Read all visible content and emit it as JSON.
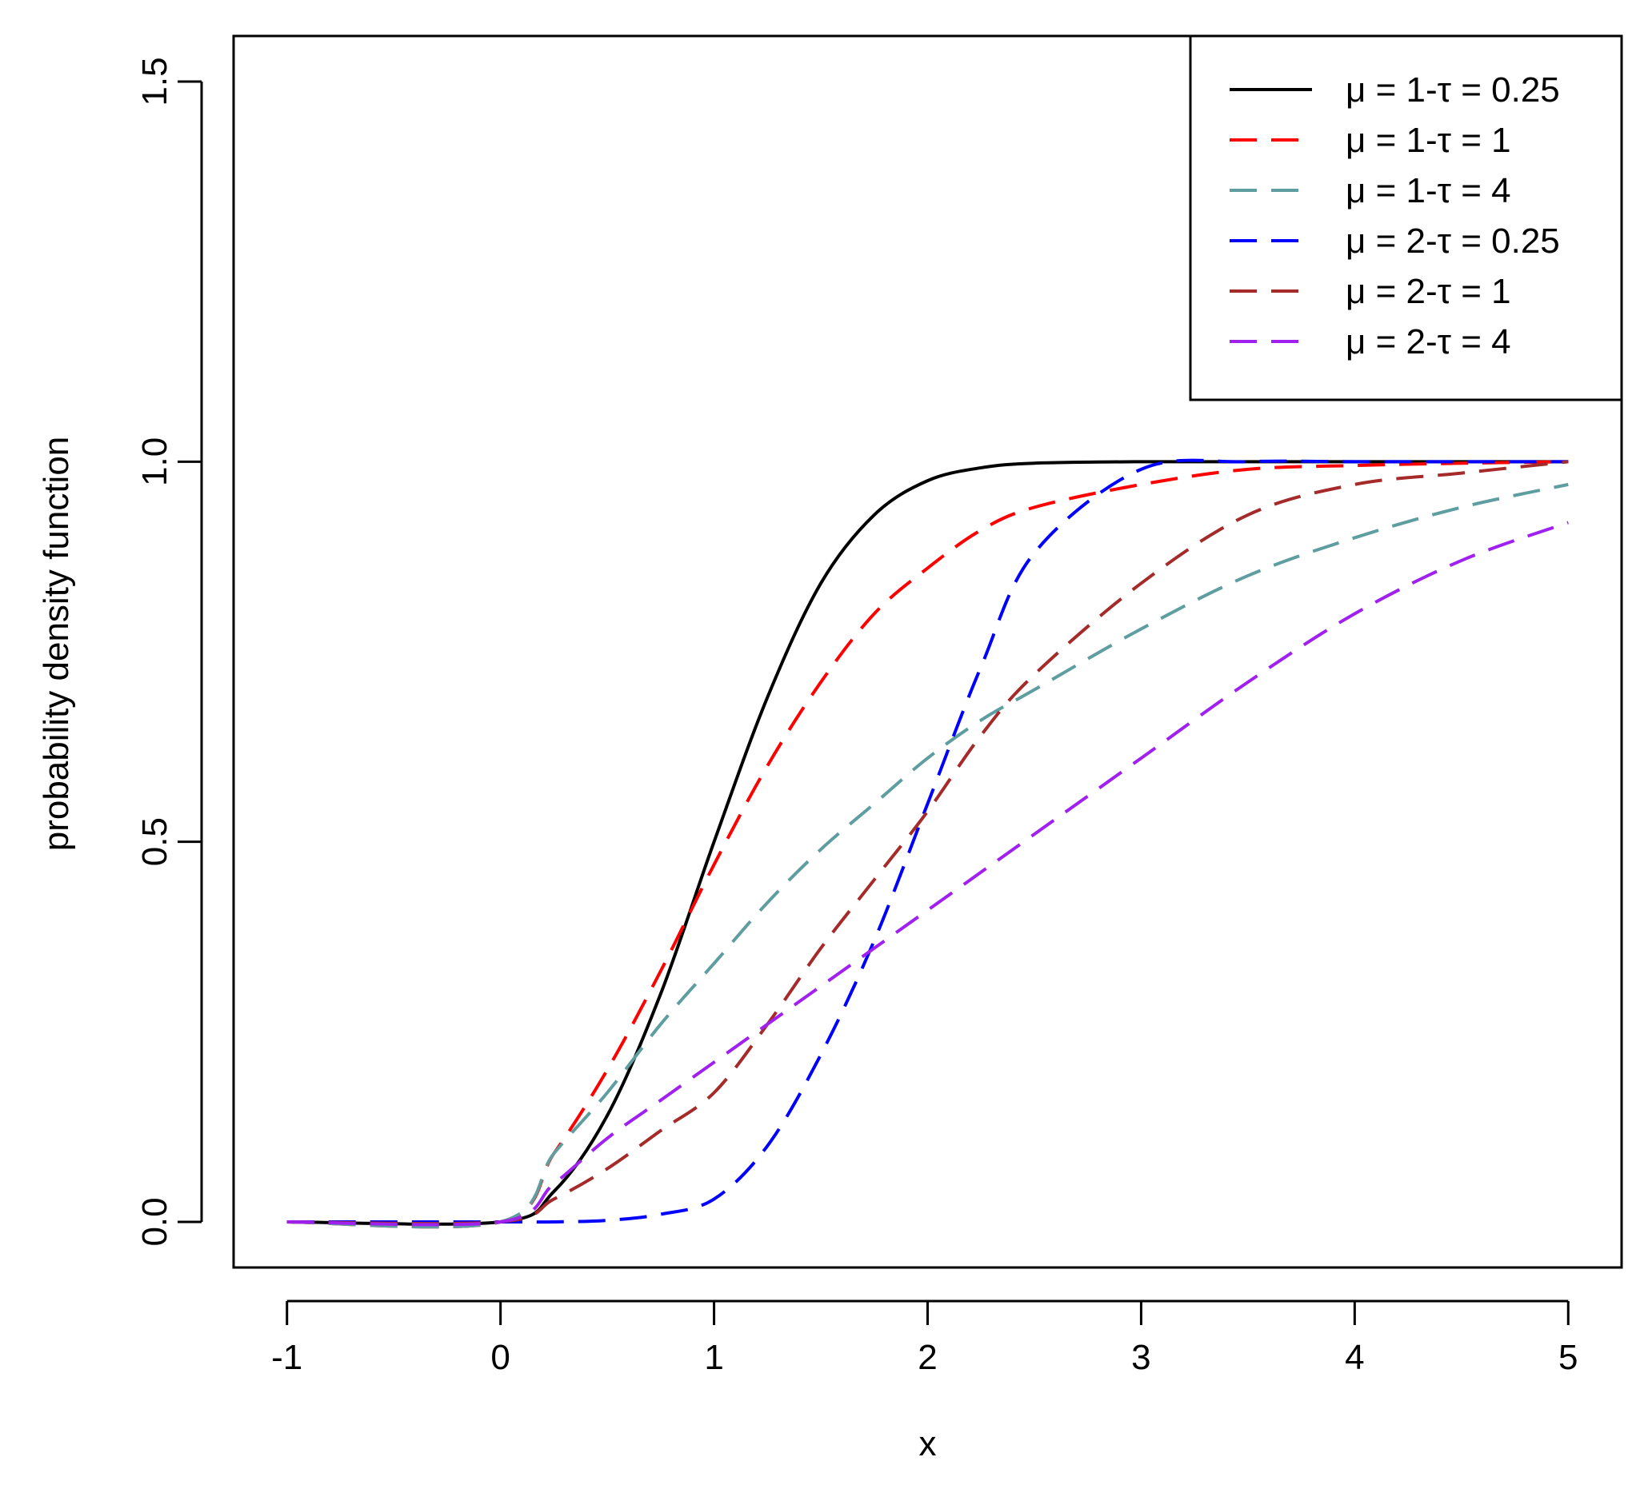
{
  "chart_data": {
    "type": "line",
    "title": "",
    "xlabel": "x",
    "ylabel": "probability density function",
    "xlim": [
      -1.25,
      5.25
    ],
    "ylim": [
      -0.06,
      1.56
    ],
    "xticks": [
      -1,
      0,
      1,
      2,
      3,
      4,
      5
    ],
    "xtick_labels": [
      "-1",
      "0",
      "1",
      "2",
      "3",
      "4",
      "5"
    ],
    "yticks": [
      0,
      0.5,
      1,
      1.5
    ],
    "ytick_labels": [
      "0.0",
      "0.5",
      "1.0",
      "1.5"
    ],
    "grid": false,
    "legend_position": "top-right",
    "x": [
      -1,
      0,
      0.25,
      0.5,
      0.75,
      1,
      1.25,
      1.5,
      1.75,
      2,
      2.25,
      2.5,
      3,
      3.5,
      4,
      4.5,
      5
    ],
    "series": [
      {
        "name": "μ = 1-τ = 0.25",
        "color": "#000000",
        "dash": "solid",
        "values": [
          0,
          0,
          0.04,
          0.14,
          0.3,
          0.5,
          0.69,
          0.84,
          0.93,
          0.975,
          0.992,
          0.998,
          1.0,
          1.0,
          1.0,
          1.0,
          1.0
        ]
      },
      {
        "name": "μ = 1-τ = 1",
        "color": "#ff0000",
        "dash": "dashed",
        "values": [
          0,
          0,
          0.09,
          0.2,
          0.33,
          0.47,
          0.6,
          0.71,
          0.8,
          0.86,
          0.91,
          0.94,
          0.97,
          0.99,
          0.995,
          0.998,
          1.0
        ]
      },
      {
        "name": "μ = 1-τ = 4",
        "color": "#5f9ea0",
        "dash": "dashed",
        "values": [
          0,
          0,
          0.09,
          0.17,
          0.26,
          0.34,
          0.42,
          0.49,
          0.55,
          0.61,
          0.66,
          0.7,
          0.78,
          0.85,
          0.9,
          0.94,
          0.97
        ]
      },
      {
        "name": "μ = 2-τ = 0.25",
        "color": "#0000ff",
        "dash": "dashed",
        "values": [
          0,
          0,
          0.0,
          0.002,
          0.01,
          0.03,
          0.1,
          0.22,
          0.37,
          0.55,
          0.73,
          0.88,
          0.99,
          1.0,
          1.0,
          1.0,
          1.0
        ]
      },
      {
        "name": "μ = 2-τ = 1",
        "color": "#a52a2a",
        "dash": "dashed",
        "values": [
          0,
          0,
          0.03,
          0.07,
          0.12,
          0.17,
          0.26,
          0.36,
          0.45,
          0.54,
          0.64,
          0.72,
          0.84,
          0.93,
          0.97,
          0.985,
          1.0
        ]
      },
      {
        "name": "μ = 2-τ = 4",
        "color": "#a020f0",
        "dash": "dashed",
        "values": [
          0,
          0,
          0.05,
          0.11,
          0.16,
          0.21,
          0.26,
          0.31,
          0.36,
          0.41,
          0.46,
          0.51,
          0.61,
          0.71,
          0.8,
          0.87,
          0.92
        ]
      }
    ]
  }
}
